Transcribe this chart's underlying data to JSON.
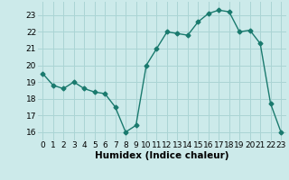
{
  "x": [
    0,
    1,
    2,
    3,
    4,
    5,
    6,
    7,
    8,
    9,
    10,
    11,
    12,
    13,
    14,
    15,
    16,
    17,
    18,
    19,
    20,
    21,
    22,
    23
  ],
  "y": [
    19.5,
    18.8,
    18.6,
    19.0,
    18.6,
    18.4,
    18.3,
    17.5,
    16.0,
    16.4,
    20.0,
    21.0,
    22.0,
    21.9,
    21.8,
    22.6,
    23.1,
    23.3,
    23.2,
    22.0,
    22.1,
    21.3,
    17.7,
    16.0
  ],
  "line_color": "#1a7a6e",
  "marker": "D",
  "marker_size": 2.5,
  "bg_color": "#cceaea",
  "grid_color": "#aad4d4",
  "xlabel": "Humidex (Indice chaleur)",
  "ylim": [
    15.5,
    23.8
  ],
  "xlim": [
    -0.5,
    23.5
  ],
  "yticks": [
    16,
    17,
    18,
    19,
    20,
    21,
    22,
    23
  ],
  "xticks": [
    0,
    1,
    2,
    3,
    4,
    5,
    6,
    7,
    8,
    9,
    10,
    11,
    12,
    13,
    14,
    15,
    16,
    17,
    18,
    19,
    20,
    21,
    22,
    23
  ],
  "tick_label_fontsize": 6.5,
  "xlabel_fontsize": 7.5
}
